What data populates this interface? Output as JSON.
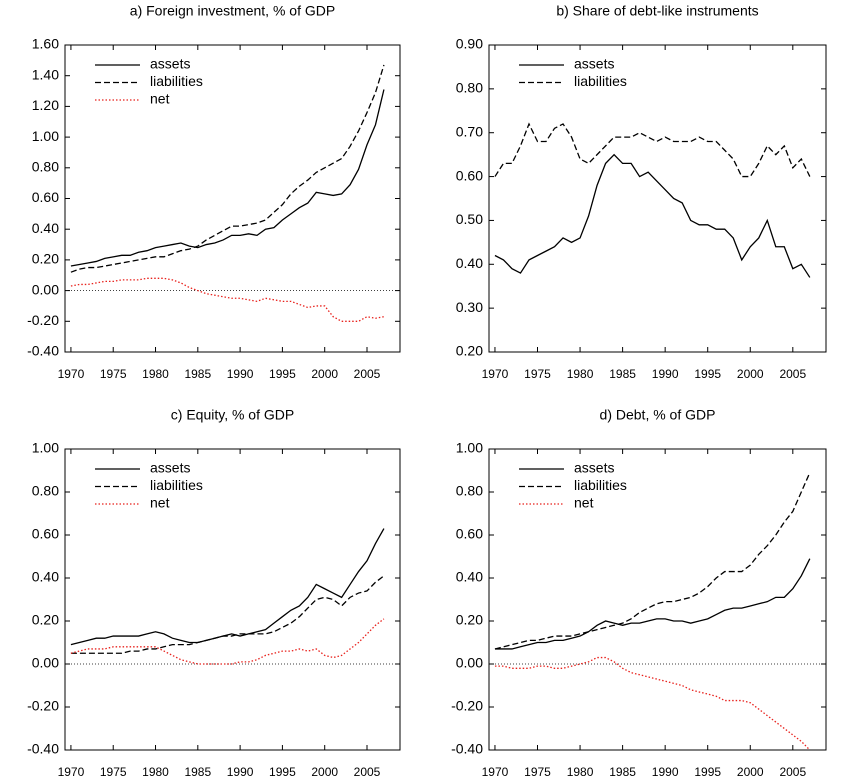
{
  "chart_data": [
    {
      "type": "line",
      "title": "a) Foreign investment, % of GDP",
      "x": [
        1970,
        1971,
        1972,
        1973,
        1974,
        1975,
        1976,
        1977,
        1978,
        1979,
        1980,
        1981,
        1982,
        1983,
        1984,
        1985,
        1986,
        1987,
        1988,
        1989,
        1990,
        1991,
        1992,
        1993,
        1994,
        1995,
        1996,
        1997,
        1998,
        1999,
        2000,
        2001,
        2002,
        2003,
        2004,
        2005,
        2006,
        2007
      ],
      "xlim": [
        1969.3,
        2008.9
      ],
      "xticks": [
        1970,
        1975,
        1980,
        1985,
        1990,
        1995,
        2000,
        2005
      ],
      "ylim": [
        -0.4,
        1.6
      ],
      "yticks": [
        {
          "value": -0.4,
          "label": "-0.40"
        },
        {
          "value": -0.2,
          "label": "-0.20"
        },
        {
          "value": 0,
          "label": "0.00"
        },
        {
          "value": 0.2,
          "label": "0.20"
        },
        {
          "value": 0.4,
          "label": "0.40"
        },
        {
          "value": 0.6,
          "label": "0.60"
        },
        {
          "value": 0.8,
          "label": "0.80"
        },
        {
          "value": 1.0,
          "label": "1.00"
        },
        {
          "value": 1.2,
          "label": "1.20"
        },
        {
          "value": 1.4,
          "label": "1.40"
        },
        {
          "value": 1.6,
          "label": "1.60"
        }
      ],
      "hline": 0,
      "legend": "upper left",
      "grid": false,
      "series": [
        {
          "name": "assets",
          "color": "#000000",
          "dash": "solid",
          "values": [
            0.16,
            0.17,
            0.18,
            0.19,
            0.21,
            0.22,
            0.23,
            0.23,
            0.25,
            0.26,
            0.28,
            0.29,
            0.3,
            0.31,
            0.29,
            0.28,
            0.3,
            0.31,
            0.33,
            0.36,
            0.36,
            0.37,
            0.36,
            0.4,
            0.41,
            0.46,
            0.5,
            0.54,
            0.57,
            0.64,
            0.63,
            0.62,
            0.63,
            0.69,
            0.79,
            0.95,
            1.08,
            1.31
          ]
        },
        {
          "name": "liabilities",
          "color": "#000000",
          "dash": "dashed",
          "values": [
            0.12,
            0.14,
            0.15,
            0.15,
            0.16,
            0.17,
            0.18,
            0.19,
            0.2,
            0.21,
            0.22,
            0.22,
            0.24,
            0.26,
            0.27,
            0.29,
            0.33,
            0.36,
            0.39,
            0.42,
            0.42,
            0.43,
            0.44,
            0.46,
            0.51,
            0.56,
            0.63,
            0.68,
            0.72,
            0.77,
            0.8,
            0.83,
            0.86,
            0.94,
            1.04,
            1.16,
            1.29,
            1.47
          ]
        },
        {
          "name": "net",
          "color": "#e8211c",
          "dash": "dotted",
          "values": [
            0.03,
            0.04,
            0.04,
            0.05,
            0.06,
            0.06,
            0.07,
            0.07,
            0.07,
            0.08,
            0.08,
            0.08,
            0.07,
            0.05,
            0.02,
            0.0,
            -0.02,
            -0.03,
            -0.04,
            -0.05,
            -0.05,
            -0.06,
            -0.07,
            -0.05,
            -0.06,
            -0.07,
            -0.07,
            -0.09,
            -0.11,
            -0.1,
            -0.1,
            -0.17,
            -0.2,
            -0.2,
            -0.2,
            -0.17,
            -0.18,
            -0.17
          ]
        }
      ]
    },
    {
      "type": "line",
      "title": "b) Share of debt-like instruments",
      "x": [
        1970,
        1971,
        1972,
        1973,
        1974,
        1975,
        1976,
        1977,
        1978,
        1979,
        1980,
        1981,
        1982,
        1983,
        1984,
        1985,
        1986,
        1987,
        1988,
        1989,
        1990,
        1991,
        1992,
        1993,
        1994,
        1995,
        1996,
        1997,
        1998,
        1999,
        2000,
        2001,
        2002,
        2003,
        2004,
        2005,
        2006,
        2007
      ],
      "xlim": [
        1969.3,
        2008.9
      ],
      "xticks": [
        1970,
        1975,
        1980,
        1985,
        1990,
        1995,
        2000,
        2005
      ],
      "ylim": [
        0.2,
        0.9
      ],
      "yticks": [
        {
          "value": 0.2,
          "label": "0.20"
        },
        {
          "value": 0.3,
          "label": "0.30"
        },
        {
          "value": 0.4,
          "label": "0.40"
        },
        {
          "value": 0.5,
          "label": "0.50"
        },
        {
          "value": 0.6,
          "label": "0.60"
        },
        {
          "value": 0.7,
          "label": "0.70"
        },
        {
          "value": 0.8,
          "label": "0.80"
        },
        {
          "value": 0.9,
          "label": "0.90"
        }
      ],
      "legend": "upper left",
      "grid": false,
      "series": [
        {
          "name": "assets",
          "color": "#000000",
          "dash": "solid",
          "values": [
            0.42,
            0.41,
            0.39,
            0.38,
            0.41,
            0.42,
            0.43,
            0.44,
            0.46,
            0.45,
            0.46,
            0.51,
            0.58,
            0.63,
            0.65,
            0.63,
            0.63,
            0.6,
            0.61,
            0.59,
            0.57,
            0.55,
            0.54,
            0.5,
            0.49,
            0.49,
            0.48,
            0.48,
            0.46,
            0.41,
            0.44,
            0.46,
            0.5,
            0.44,
            0.44,
            0.39,
            0.4,
            0.37
          ]
        },
        {
          "name": "liabilities",
          "color": "#000000",
          "dash": "dashed",
          "values": [
            0.6,
            0.63,
            0.63,
            0.67,
            0.72,
            0.68,
            0.68,
            0.71,
            0.72,
            0.69,
            0.64,
            0.63,
            0.65,
            0.67,
            0.69,
            0.69,
            0.69,
            0.7,
            0.69,
            0.68,
            0.69,
            0.68,
            0.68,
            0.68,
            0.69,
            0.68,
            0.68,
            0.66,
            0.64,
            0.6,
            0.6,
            0.63,
            0.67,
            0.65,
            0.67,
            0.62,
            0.64,
            0.6
          ]
        }
      ]
    },
    {
      "type": "line",
      "title": "c) Equity, % of GDP",
      "x": [
        1970,
        1971,
        1972,
        1973,
        1974,
        1975,
        1976,
        1977,
        1978,
        1979,
        1980,
        1981,
        1982,
        1983,
        1984,
        1985,
        1986,
        1987,
        1988,
        1989,
        1990,
        1991,
        1992,
        1993,
        1994,
        1995,
        1996,
        1997,
        1998,
        1999,
        2000,
        2001,
        2002,
        2003,
        2004,
        2005,
        2006,
        2007
      ],
      "xlim": [
        1969.3,
        2008.9
      ],
      "xticks": [
        1970,
        1975,
        1980,
        1985,
        1990,
        1995,
        2000,
        2005
      ],
      "ylim": [
        -0.4,
        1.0
      ],
      "yticks": [
        {
          "value": -0.4,
          "label": "-0.40"
        },
        {
          "value": -0.2,
          "label": "-0.20"
        },
        {
          "value": 0,
          "label": "0.00"
        },
        {
          "value": 0.2,
          "label": "0.20"
        },
        {
          "value": 0.4,
          "label": "0.40"
        },
        {
          "value": 0.6,
          "label": "0.60"
        },
        {
          "value": 0.8,
          "label": "0.80"
        },
        {
          "value": 1.0,
          "label": "1.00"
        }
      ],
      "hline": 0,
      "legend": "upper left",
      "grid": false,
      "series": [
        {
          "name": "assets",
          "color": "#000000",
          "dash": "solid",
          "values": [
            0.09,
            0.1,
            0.11,
            0.12,
            0.12,
            0.13,
            0.13,
            0.13,
            0.13,
            0.14,
            0.15,
            0.14,
            0.12,
            0.11,
            0.1,
            0.1,
            0.11,
            0.12,
            0.13,
            0.14,
            0.13,
            0.14,
            0.15,
            0.16,
            0.19,
            0.22,
            0.25,
            0.27,
            0.31,
            0.37,
            0.35,
            0.33,
            0.31,
            0.37,
            0.43,
            0.48,
            0.56,
            0.63
          ]
        },
        {
          "name": "liabilities",
          "color": "#000000",
          "dash": "dashed",
          "values": [
            0.05,
            0.05,
            0.05,
            0.05,
            0.05,
            0.05,
            0.05,
            0.06,
            0.06,
            0.07,
            0.07,
            0.08,
            0.09,
            0.09,
            0.09,
            0.1,
            0.11,
            0.12,
            0.13,
            0.13,
            0.14,
            0.14,
            0.14,
            0.14,
            0.15,
            0.17,
            0.19,
            0.22,
            0.26,
            0.3,
            0.31,
            0.3,
            0.27,
            0.31,
            0.33,
            0.34,
            0.38,
            0.41
          ]
        },
        {
          "name": "net",
          "color": "#e8211c",
          "dash": "dotted",
          "values": [
            0.05,
            0.06,
            0.07,
            0.07,
            0.07,
            0.08,
            0.08,
            0.08,
            0.08,
            0.08,
            0.08,
            0.06,
            0.04,
            0.02,
            0.01,
            0.0,
            0.0,
            0.0,
            0.0,
            0.0,
            0.01,
            0.01,
            0.02,
            0.04,
            0.05,
            0.06,
            0.06,
            0.07,
            0.06,
            0.07,
            0.04,
            0.03,
            0.04,
            0.07,
            0.1,
            0.14,
            0.18,
            0.21
          ]
        }
      ]
    },
    {
      "type": "line",
      "title": "d) Debt, % of GDP",
      "x": [
        1970,
        1971,
        1972,
        1973,
        1974,
        1975,
        1976,
        1977,
        1978,
        1979,
        1980,
        1981,
        1982,
        1983,
        1984,
        1985,
        1986,
        1987,
        1988,
        1989,
        1990,
        1991,
        1992,
        1993,
        1994,
        1995,
        1996,
        1997,
        1998,
        1999,
        2000,
        2001,
        2002,
        2003,
        2004,
        2005,
        2006,
        2007
      ],
      "xlim": [
        1969.3,
        2008.9
      ],
      "xticks": [
        1970,
        1975,
        1980,
        1985,
        1990,
        1995,
        2000,
        2005
      ],
      "ylim": [
        -0.4,
        1.0
      ],
      "yticks": [
        {
          "value": -0.4,
          "label": "-0.40"
        },
        {
          "value": -0.2,
          "label": "-0.20"
        },
        {
          "value": 0,
          "label": "0.00"
        },
        {
          "value": 0.2,
          "label": "0.20"
        },
        {
          "value": 0.4,
          "label": "0.40"
        },
        {
          "value": 0.6,
          "label": "0.60"
        },
        {
          "value": 0.8,
          "label": "0.80"
        },
        {
          "value": 1.0,
          "label": "1.00"
        }
      ],
      "hline": 0,
      "legend": "upper left",
      "grid": false,
      "series": [
        {
          "name": "assets",
          "color": "#000000",
          "dash": "solid",
          "values": [
            0.07,
            0.07,
            0.07,
            0.08,
            0.09,
            0.1,
            0.1,
            0.11,
            0.11,
            0.12,
            0.13,
            0.15,
            0.18,
            0.2,
            0.19,
            0.18,
            0.19,
            0.19,
            0.2,
            0.21,
            0.21,
            0.2,
            0.2,
            0.19,
            0.2,
            0.21,
            0.23,
            0.25,
            0.26,
            0.26,
            0.27,
            0.28,
            0.29,
            0.31,
            0.31,
            0.35,
            0.41,
            0.49
          ]
        },
        {
          "name": "liabilities",
          "color": "#000000",
          "dash": "dashed",
          "values": [
            0.07,
            0.08,
            0.09,
            0.1,
            0.11,
            0.11,
            0.12,
            0.13,
            0.13,
            0.13,
            0.14,
            0.15,
            0.16,
            0.17,
            0.18,
            0.19,
            0.21,
            0.24,
            0.26,
            0.28,
            0.29,
            0.29,
            0.3,
            0.31,
            0.33,
            0.36,
            0.4,
            0.43,
            0.43,
            0.43,
            0.46,
            0.51,
            0.55,
            0.6,
            0.66,
            0.71,
            0.8,
            0.89
          ]
        },
        {
          "name": "net",
          "color": "#e8211c",
          "dash": "dotted",
          "values": [
            -0.01,
            -0.01,
            -0.02,
            -0.02,
            -0.02,
            -0.01,
            -0.01,
            -0.02,
            -0.02,
            -0.01,
            0.0,
            0.01,
            0.03,
            0.03,
            0.01,
            -0.02,
            -0.04,
            -0.05,
            -0.06,
            -0.07,
            -0.08,
            -0.09,
            -0.1,
            -0.12,
            -0.13,
            -0.14,
            -0.15,
            -0.17,
            -0.17,
            -0.17,
            -0.18,
            -0.21,
            -0.24,
            -0.27,
            -0.3,
            -0.33,
            -0.36,
            -0.4
          ]
        }
      ]
    }
  ]
}
